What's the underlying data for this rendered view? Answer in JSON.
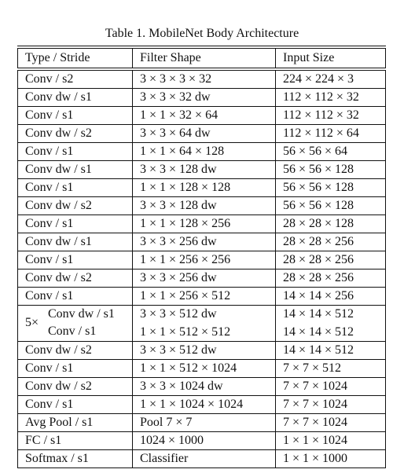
{
  "caption": "Table 1. MobileNet Body Architecture",
  "headers": [
    "Type / Stride",
    "Filter Shape",
    "Input Size"
  ],
  "rows": [
    {
      "type": "Conv / s2",
      "filter": "3 × 3 × 3 × 32",
      "input": "224 × 224 × 3"
    },
    {
      "type": "Conv dw / s1",
      "filter": "3 × 3 × 32 dw",
      "input": "112 × 112 × 32"
    },
    {
      "type": "Conv / s1",
      "filter": "1 × 1 × 32 × 64",
      "input": "112 × 112 × 32"
    },
    {
      "type": "Conv dw / s2",
      "filter": "3 × 3 × 64 dw",
      "input": "112 × 112 × 64"
    },
    {
      "type": "Conv / s1",
      "filter": "1 × 1 × 64 × 128",
      "input": "56 × 56 × 64"
    },
    {
      "type": "Conv dw / s1",
      "filter": "3 × 3 × 128 dw",
      "input": "56 × 56 × 128"
    },
    {
      "type": "Conv / s1",
      "filter": "1 × 1 × 128 × 128",
      "input": "56 × 56 × 128"
    },
    {
      "type": "Conv dw / s2",
      "filter": "3 × 3 × 128 dw",
      "input": "56 × 56 × 128"
    },
    {
      "type": "Conv / s1",
      "filter": "1 × 1 × 128 × 256",
      "input": "28 × 28 × 128"
    },
    {
      "type": "Conv dw / s1",
      "filter": "3 × 3 × 256 dw",
      "input": "28 × 28 × 256"
    },
    {
      "type": "Conv / s1",
      "filter": "1 × 1 × 256 × 256",
      "input": "28 × 28 × 256"
    },
    {
      "type": "Conv dw / s2",
      "filter": "3 × 3 × 256 dw",
      "input": "28 × 28 × 256"
    },
    {
      "type": "Conv / s1",
      "filter": "1 × 1 × 256 × 512",
      "input": "14 × 14 × 256"
    }
  ],
  "repeat": {
    "multiplier": "5×",
    "rows": [
      {
        "type": "Conv dw / s1",
        "filter": "3 × 3 × 512 dw",
        "input": "14 × 14 × 512"
      },
      {
        "type": "Conv / s1",
        "filter": "1 × 1 × 512 × 512",
        "input": "14 × 14 × 512"
      }
    ]
  },
  "rows_after": [
    {
      "type": "Conv dw / s2",
      "filter": "3 × 3 × 512 dw",
      "input": "14 × 14 × 512"
    },
    {
      "type": "Conv / s1",
      "filter": "1 × 1 × 512 × 1024",
      "input": "7 × 7 × 512"
    },
    {
      "type": "Conv dw / s2",
      "filter": "3 × 3 × 1024 dw",
      "input": "7 × 7 × 1024"
    },
    {
      "type": "Conv / s1",
      "filter": "1 × 1 × 1024 × 1024",
      "input": "7 × 7 × 1024"
    },
    {
      "type": "Avg Pool / s1",
      "filter": "Pool 7 × 7",
      "input": "7 × 7 × 1024"
    },
    {
      "type": "FC / s1",
      "filter": "1024 × 1000",
      "input": "1 × 1 × 1024"
    },
    {
      "type": "Softmax / s1",
      "filter": "Classifier",
      "input": "1 × 1 × 1000"
    }
  ]
}
